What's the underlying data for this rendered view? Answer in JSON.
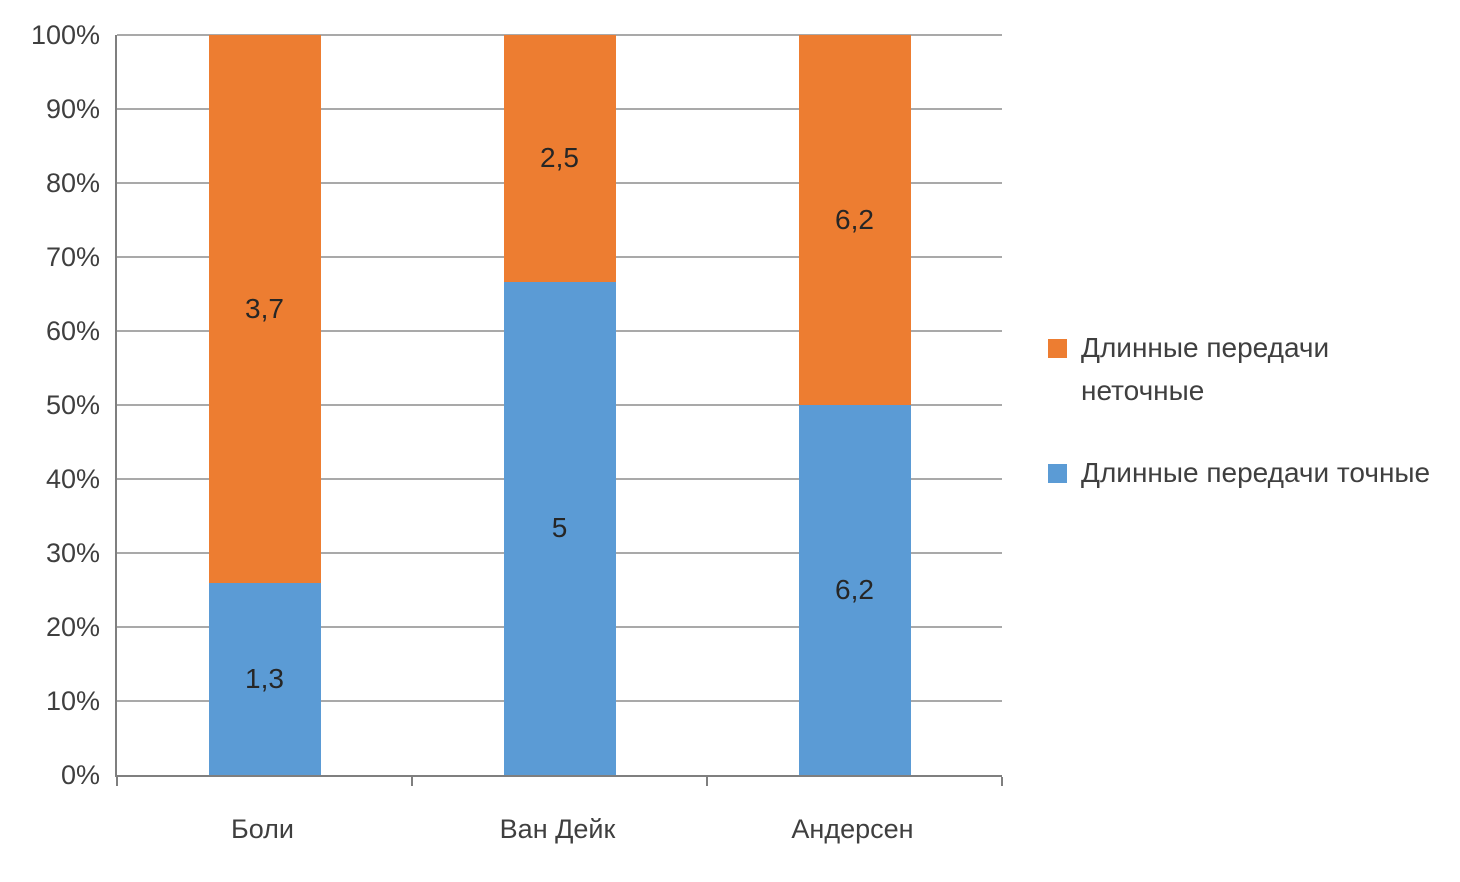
{
  "chart_data": {
    "type": "bar",
    "subtype": "stacked-100-percent",
    "title": "",
    "categories": [
      "Боли",
      "Ван Дейк",
      "Андерсен"
    ],
    "series": [
      {
        "name": "Длинные передачи точные",
        "color": "#5b9bd5",
        "values": [
          1.3,
          5,
          6.2
        ],
        "labels": [
          "1,3",
          "5",
          "6,2"
        ]
      },
      {
        "name": "Длинные передачи неточные",
        "color": "#ed7d31",
        "values": [
          3.7,
          2.5,
          6.2
        ],
        "labels": [
          "3,7",
          "2,5",
          "6,2"
        ]
      }
    ],
    "legend": [
      {
        "label": "Длинные передачи неточные",
        "color": "#ed7d31"
      },
      {
        "label": "Длинные передачи точные",
        "color": "#5b9bd5"
      }
    ],
    "legend_position": "right",
    "y_ticks": [
      "0%",
      "10%",
      "20%",
      "30%",
      "40%",
      "50%",
      "60%",
      "70%",
      "80%",
      "90%",
      "100%"
    ],
    "ylim": [
      0,
      100
    ],
    "grid": true,
    "xlabel": "",
    "ylabel": ""
  }
}
